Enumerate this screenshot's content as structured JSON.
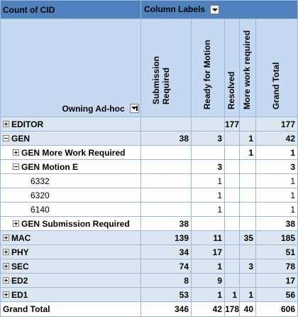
{
  "pivot": {
    "title": "Count of CID",
    "column_labels": "Column Labels",
    "row_field": "Owning Ad-hoc",
    "columns": [
      "Submission\nRequired",
      "Ready for Motion",
      "Resolved",
      "More work required",
      "Grand Total"
    ],
    "rows": [
      {
        "label": "EDITOR",
        "toggle": "plus",
        "level": 0,
        "band": true,
        "values": [
          "",
          "",
          "177",
          "",
          "177"
        ]
      },
      {
        "label": "GEN",
        "toggle": "minus",
        "level": 0,
        "band": true,
        "values": [
          "38",
          "3",
          "",
          "1",
          "42"
        ]
      },
      {
        "label": "GEN More Work Required",
        "toggle": "plus",
        "level": 1,
        "band": false,
        "values": [
          "",
          "",
          "",
          "1",
          "1"
        ]
      },
      {
        "label": "GEN Motion E",
        "toggle": "minus",
        "level": 1,
        "band": false,
        "values": [
          "",
          "3",
          "",
          "",
          "3"
        ]
      },
      {
        "label": "6332",
        "toggle": "",
        "level": 2,
        "band": false,
        "values": [
          "",
          "1",
          "",
          "",
          "1"
        ]
      },
      {
        "label": "6320",
        "toggle": "",
        "level": 2,
        "band": false,
        "values": [
          "",
          "1",
          "",
          "",
          "1"
        ]
      },
      {
        "label": "6140",
        "toggle": "",
        "level": 2,
        "band": false,
        "values": [
          "",
          "1",
          "",
          "",
          "1"
        ]
      },
      {
        "label": "GEN Submission Required",
        "toggle": "plus",
        "level": 1,
        "band": false,
        "values": [
          "38",
          "",
          "",
          "",
          "38"
        ]
      },
      {
        "label": "MAC",
        "toggle": "plus",
        "level": 0,
        "band": true,
        "values": [
          "139",
          "11",
          "",
          "35",
          "185"
        ]
      },
      {
        "label": "PHY",
        "toggle": "plus",
        "level": 0,
        "band": true,
        "values": [
          "34",
          "17",
          "",
          "",
          "51"
        ]
      },
      {
        "label": "SEC",
        "toggle": "plus",
        "level": 0,
        "band": true,
        "values": [
          "74",
          "1",
          "",
          "3",
          "78"
        ]
      },
      {
        "label": "ED2",
        "toggle": "plus",
        "level": 0,
        "band": true,
        "values": [
          "8",
          "9",
          "",
          "",
          "17"
        ]
      },
      {
        "label": "ED1",
        "toggle": "plus",
        "level": 0,
        "band": true,
        "values": [
          "53",
          "1",
          "1",
          "1",
          "56"
        ]
      }
    ],
    "grand_total": {
      "label": "Grand Total",
      "values": [
        "346",
        "42",
        "178",
        "40",
        "606"
      ]
    }
  }
}
